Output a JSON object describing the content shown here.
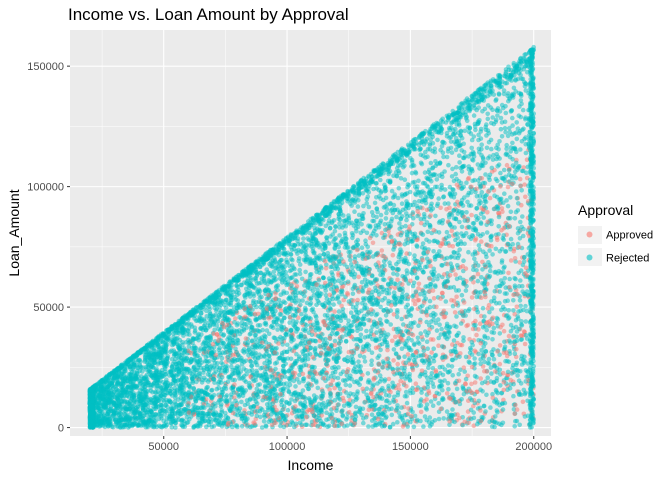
{
  "chart_data": {
    "type": "scatter",
    "title": "Income vs. Loan Amount by Approval",
    "xlabel": "Income",
    "ylabel": "Loan_Amount",
    "xlim": [
      12000,
      207000
    ],
    "ylim": [
      -3500,
      165000
    ],
    "x_ticks": [
      50000,
      100000,
      150000,
      200000
    ],
    "y_ticks": [
      0,
      50000,
      100000,
      150000
    ],
    "grid": true,
    "legend": {
      "title": "Approval",
      "position": "right",
      "entries": [
        "Approved",
        "Rejected"
      ]
    },
    "colors": {
      "Approved": "#F8766D",
      "Rejected": "#00BFC4",
      "panel": "#EBEBEB",
      "grid": "#FFFFFF"
    },
    "domain": {
      "x_min": 20000,
      "x_max": 200000,
      "y_min": 0,
      "y_max_ratio": 0.79
    },
    "series": [
      {
        "name": "Approved",
        "region": "lower-right, y below ~0.6 × x",
        "sample_points": [
          [
            90000,
            10000
          ],
          [
            110000,
            30000
          ],
          [
            140000,
            20000
          ],
          [
            150000,
            60000
          ],
          [
            170000,
            40000
          ],
          [
            185000,
            75000
          ],
          [
            195000,
            100000
          ],
          [
            160000,
            90000
          ],
          [
            130000,
            50000
          ],
          [
            195000,
            20000
          ],
          [
            100000,
            42000
          ],
          [
            120000,
            5000
          ]
        ]
      },
      {
        "name": "Rejected",
        "region": "full triangle 0 ≤ y ≤ ~0.79 × x, x in [20000, 200000]",
        "sample_points": [
          [
            20000,
            15000
          ],
          [
            50000,
            39000
          ],
          [
            100000,
            78000
          ],
          [
            150000,
            118000
          ],
          [
            200000,
            158000
          ],
          [
            60000,
            20000
          ],
          [
            120000,
            60000
          ],
          [
            180000,
            140000
          ],
          [
            40000,
            5000
          ],
          [
            200000,
            50000
          ]
        ]
      }
    ]
  }
}
